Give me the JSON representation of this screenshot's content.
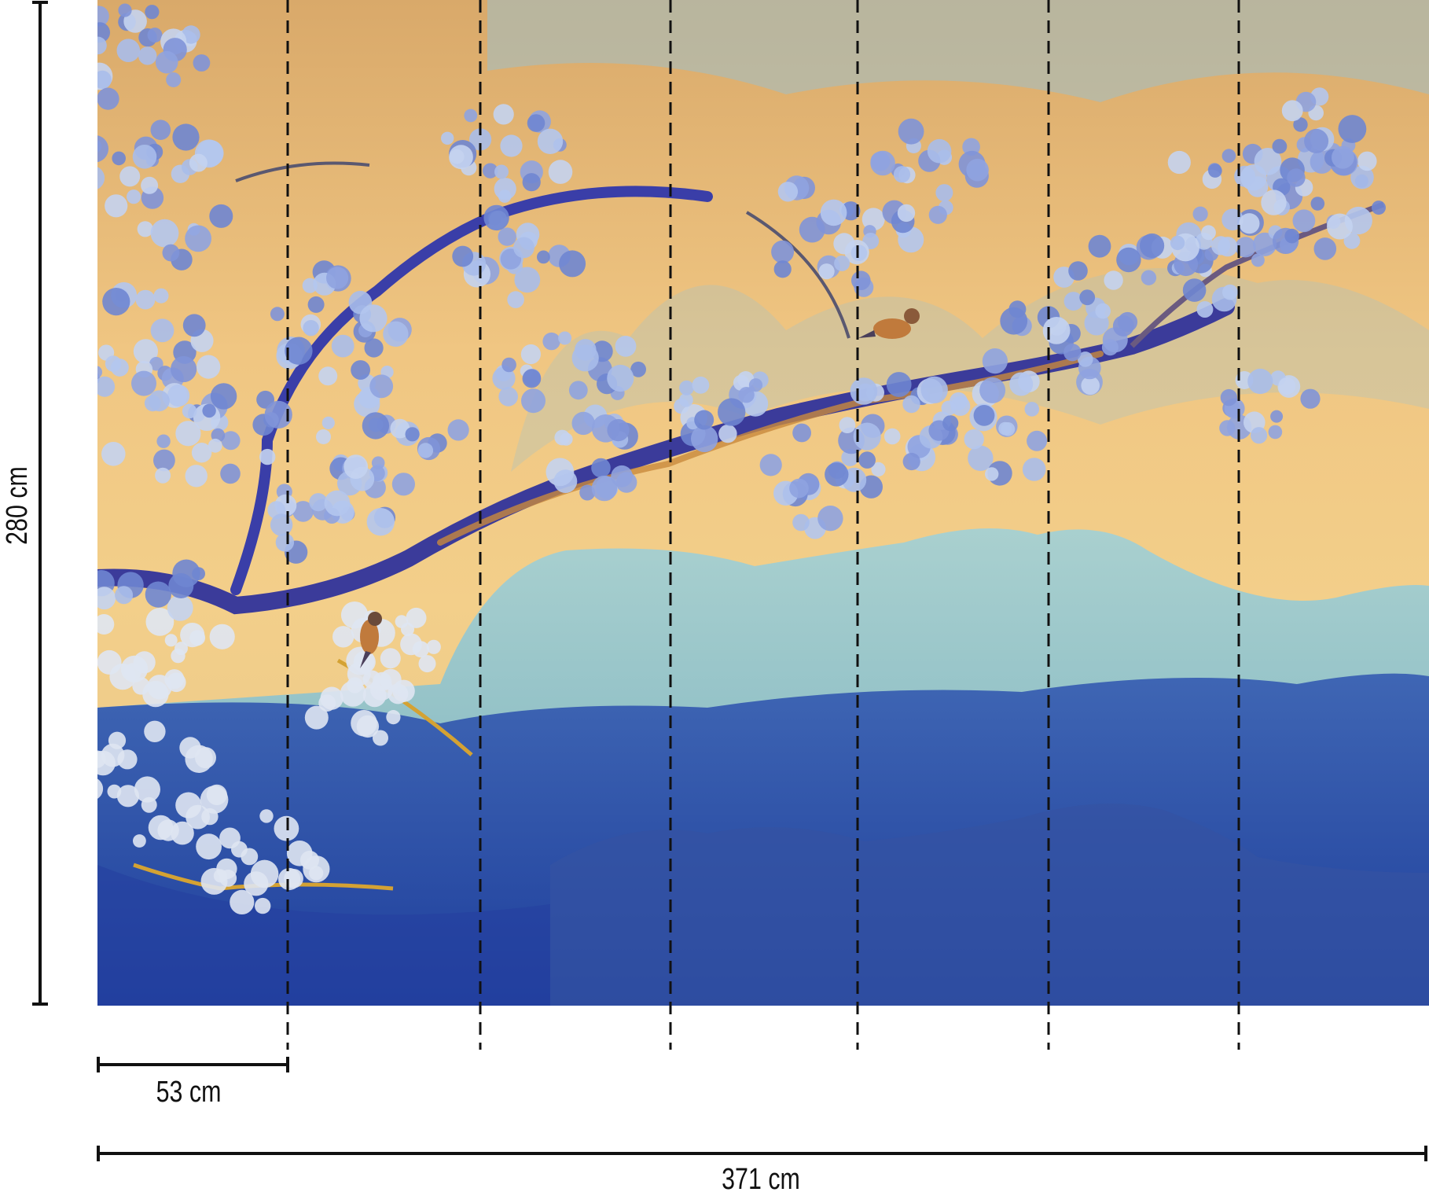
{
  "dimensions": {
    "height": "280 cm",
    "panel_width": "53 cm",
    "total_width": "371 cm"
  }
}
